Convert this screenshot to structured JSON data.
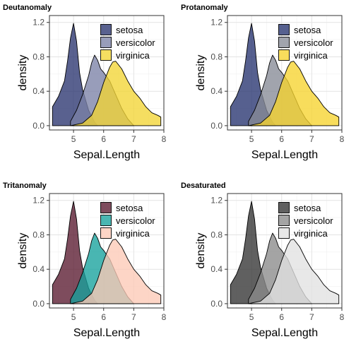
{
  "chart_data": [
    {
      "type": "area",
      "title": "Deutanomaly",
      "xlabel": "Sepal.Length",
      "ylabel": "density",
      "xlim": [
        4.2,
        8.0
      ],
      "ylim": [
        -0.05,
        1.28
      ],
      "x_ticks": [
        5,
        6,
        7,
        8
      ],
      "y_ticks": [
        0.0,
        0.4,
        0.8,
        1.2
      ],
      "y_tick_labels": [
        "0.0",
        "0.4",
        "0.8",
        "1.2"
      ],
      "grid": true,
      "legend_position": "top-right",
      "series": [
        {
          "name": "setosa",
          "color": "#2a3470",
          "x": [
            4.3,
            4.5,
            4.7,
            4.8,
            4.9,
            5.0,
            5.1,
            5.2,
            5.3,
            5.5,
            5.7,
            5.8
          ],
          "y": [
            0.22,
            0.34,
            0.52,
            0.75,
            1.02,
            1.19,
            0.98,
            0.62,
            0.42,
            0.18,
            0.04,
            0.0
          ]
        },
        {
          "name": "versicolor",
          "color": "#7b82a6",
          "x": [
            4.9,
            5.1,
            5.3,
            5.5,
            5.6,
            5.7,
            5.8,
            5.9,
            6.0,
            6.2,
            6.4,
            6.6,
            6.8,
            7.0
          ],
          "y": [
            0.05,
            0.18,
            0.36,
            0.58,
            0.73,
            0.82,
            0.76,
            0.66,
            0.62,
            0.52,
            0.36,
            0.2,
            0.08,
            0.0
          ]
        },
        {
          "name": "virginica",
          "color": "#f2d534",
          "x": [
            4.9,
            5.3,
            5.6,
            5.8,
            6.0,
            6.2,
            6.3,
            6.4,
            6.6,
            6.8,
            7.0,
            7.2,
            7.4,
            7.6,
            7.8,
            7.9
          ],
          "y": [
            0.0,
            0.03,
            0.12,
            0.28,
            0.5,
            0.68,
            0.74,
            0.75,
            0.66,
            0.52,
            0.4,
            0.32,
            0.22,
            0.15,
            0.12,
            0.1
          ]
        }
      ]
    },
    {
      "type": "area",
      "title": "Protanomaly",
      "xlabel": "Sepal.Length",
      "ylabel": "density",
      "xlim": [
        4.2,
        8.0
      ],
      "ylim": [
        -0.05,
        1.28
      ],
      "x_ticks": [
        5,
        6,
        7,
        8
      ],
      "y_ticks": [
        0.0,
        0.4,
        0.8,
        1.2
      ],
      "y_tick_labels": [
        "0.0",
        "0.4",
        "0.8",
        "1.2"
      ],
      "grid": true,
      "legend_position": "top-right",
      "series": [
        {
          "name": "setosa",
          "color": "#27336f",
          "x": [
            4.3,
            4.5,
            4.7,
            4.8,
            4.9,
            5.0,
            5.1,
            5.2,
            5.3,
            5.5,
            5.7,
            5.8
          ],
          "y": [
            0.22,
            0.34,
            0.52,
            0.75,
            1.02,
            1.19,
            0.98,
            0.62,
            0.42,
            0.18,
            0.04,
            0.0
          ]
        },
        {
          "name": "versicolor",
          "color": "#878a96",
          "x": [
            4.9,
            5.1,
            5.3,
            5.5,
            5.6,
            5.7,
            5.8,
            5.9,
            6.0,
            6.2,
            6.4,
            6.6,
            6.8,
            7.0
          ],
          "y": [
            0.05,
            0.18,
            0.36,
            0.58,
            0.73,
            0.82,
            0.76,
            0.66,
            0.62,
            0.52,
            0.36,
            0.2,
            0.08,
            0.0
          ]
        },
        {
          "name": "virginica",
          "color": "#f6d42e",
          "x": [
            4.9,
            5.3,
            5.6,
            5.8,
            6.0,
            6.2,
            6.3,
            6.4,
            6.6,
            6.8,
            7.0,
            7.2,
            7.4,
            7.6,
            7.8,
            7.9
          ],
          "y": [
            0.0,
            0.03,
            0.12,
            0.28,
            0.5,
            0.68,
            0.74,
            0.75,
            0.66,
            0.52,
            0.4,
            0.32,
            0.22,
            0.15,
            0.12,
            0.1
          ]
        }
      ]
    },
    {
      "type": "area",
      "title": "Tritanomaly",
      "xlabel": "Sepal.Length",
      "ylabel": "density",
      "xlim": [
        4.2,
        8.0
      ],
      "ylim": [
        -0.05,
        1.28
      ],
      "x_ticks": [
        5,
        6,
        7,
        8
      ],
      "y_ticks": [
        0.0,
        0.4,
        0.8,
        1.2
      ],
      "y_tick_labels": [
        "0.0",
        "0.4",
        "0.8",
        "1.2"
      ],
      "grid": true,
      "legend_position": "top-right",
      "series": [
        {
          "name": "setosa",
          "color": "#5a1a30",
          "x": [
            4.3,
            4.5,
            4.7,
            4.8,
            4.9,
            5.0,
            5.1,
            5.2,
            5.3,
            5.5,
            5.7,
            5.8
          ],
          "y": [
            0.22,
            0.34,
            0.52,
            0.75,
            1.02,
            1.19,
            0.98,
            0.62,
            0.42,
            0.18,
            0.04,
            0.0
          ]
        },
        {
          "name": "versicolor",
          "color": "#16a29c",
          "x": [
            4.9,
            5.1,
            5.3,
            5.5,
            5.6,
            5.7,
            5.8,
            5.9,
            6.0,
            6.2,
            6.4,
            6.6,
            6.8,
            7.0
          ],
          "y": [
            0.05,
            0.18,
            0.36,
            0.58,
            0.73,
            0.82,
            0.76,
            0.66,
            0.62,
            0.52,
            0.36,
            0.2,
            0.08,
            0.0
          ]
        },
        {
          "name": "virginica",
          "color": "#fdc9b6",
          "x": [
            4.9,
            5.3,
            5.6,
            5.8,
            6.0,
            6.2,
            6.3,
            6.4,
            6.6,
            6.8,
            7.0,
            7.2,
            7.4,
            7.6,
            7.8,
            7.9
          ],
          "y": [
            0.0,
            0.03,
            0.12,
            0.28,
            0.5,
            0.68,
            0.74,
            0.75,
            0.66,
            0.52,
            0.4,
            0.32,
            0.22,
            0.15,
            0.12,
            0.1
          ]
        }
      ]
    },
    {
      "type": "area",
      "title": "Desaturated",
      "xlabel": "Sepal.Length",
      "ylabel": "density",
      "xlim": [
        4.2,
        8.0
      ],
      "ylim": [
        -0.05,
        1.28
      ],
      "x_ticks": [
        5,
        6,
        7,
        8
      ],
      "y_ticks": [
        0.0,
        0.4,
        0.8,
        1.2
      ],
      "y_tick_labels": [
        "0.0",
        "0.4",
        "0.8",
        "1.2"
      ],
      "grid": true,
      "legend_position": "top-right",
      "series": [
        {
          "name": "setosa",
          "color": "#333333",
          "x": [
            4.3,
            4.5,
            4.7,
            4.8,
            4.9,
            5.0,
            5.1,
            5.2,
            5.3,
            5.5,
            5.7,
            5.8
          ],
          "y": [
            0.22,
            0.34,
            0.52,
            0.75,
            1.02,
            1.19,
            0.98,
            0.62,
            0.42,
            0.18,
            0.04,
            0.0
          ]
        },
        {
          "name": "versicolor",
          "color": "#8a8a8a",
          "x": [
            4.9,
            5.1,
            5.3,
            5.5,
            5.6,
            5.7,
            5.8,
            5.9,
            6.0,
            6.2,
            6.4,
            6.6,
            6.8,
            7.0
          ],
          "y": [
            0.05,
            0.18,
            0.36,
            0.58,
            0.73,
            0.82,
            0.76,
            0.66,
            0.62,
            0.52,
            0.36,
            0.2,
            0.08,
            0.0
          ]
        },
        {
          "name": "virginica",
          "color": "#e2e2e2",
          "x": [
            4.9,
            5.3,
            5.6,
            5.8,
            6.0,
            6.2,
            6.3,
            6.4,
            6.6,
            6.8,
            7.0,
            7.2,
            7.4,
            7.6,
            7.8,
            7.9
          ],
          "y": [
            0.0,
            0.03,
            0.12,
            0.28,
            0.5,
            0.68,
            0.74,
            0.75,
            0.66,
            0.52,
            0.4,
            0.32,
            0.22,
            0.15,
            0.12,
            0.1
          ]
        }
      ]
    }
  ]
}
